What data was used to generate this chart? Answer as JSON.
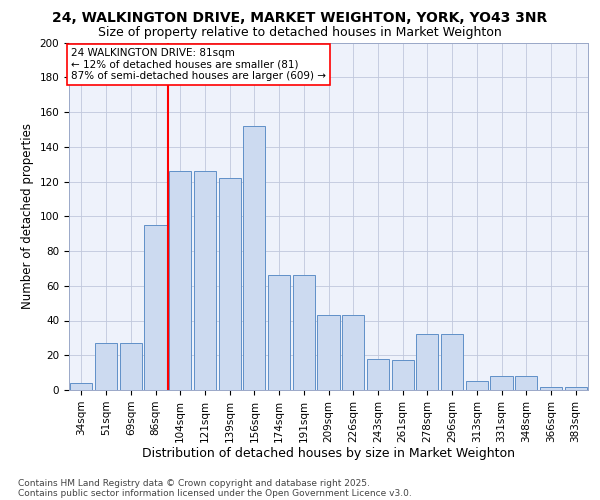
{
  "title1": "24, WALKINGTON DRIVE, MARKET WEIGHTON, YORK, YO43 3NR",
  "title2": "Size of property relative to detached houses in Market Weighton",
  "xlabel": "Distribution of detached houses by size in Market Weighton",
  "ylabel": "Number of detached properties",
  "bar_color": "#ccdaf0",
  "bar_edge_color": "#6090c8",
  "background_color": "#eef2fb",
  "grid_color": "#c0c8dc",
  "categories": [
    "34sqm",
    "51sqm",
    "69sqm",
    "86sqm",
    "104sqm",
    "121sqm",
    "139sqm",
    "156sqm",
    "174sqm",
    "191sqm",
    "209sqm",
    "226sqm",
    "243sqm",
    "261sqm",
    "278sqm",
    "296sqm",
    "313sqm",
    "331sqm",
    "348sqm",
    "366sqm",
    "383sqm"
  ],
  "bin_values": [
    4,
    27,
    27,
    95,
    126,
    126,
    122,
    152,
    66,
    66,
    43,
    43,
    18,
    17,
    32,
    32,
    5,
    8,
    8,
    2,
    2
  ],
  "ylim": [
    0,
    200
  ],
  "yticks": [
    0,
    20,
    40,
    60,
    80,
    100,
    120,
    140,
    160,
    180,
    200
  ],
  "red_line_x": 3.5,
  "annotation_line1": "24 WALKINGTON DRIVE: 81sqm",
  "annotation_line2": "← 12% of detached houses are smaller (81)",
  "annotation_line3": "87% of semi-detached houses are larger (609) →",
  "footer": "Contains HM Land Registry data © Crown copyright and database right 2025.\nContains public sector information licensed under the Open Government Licence v3.0.",
  "title1_fontsize": 10,
  "title2_fontsize": 9,
  "xlabel_fontsize": 9,
  "ylabel_fontsize": 8.5,
  "tick_fontsize": 7.5,
  "footer_fontsize": 6.5,
  "annot_fontsize": 7.5
}
